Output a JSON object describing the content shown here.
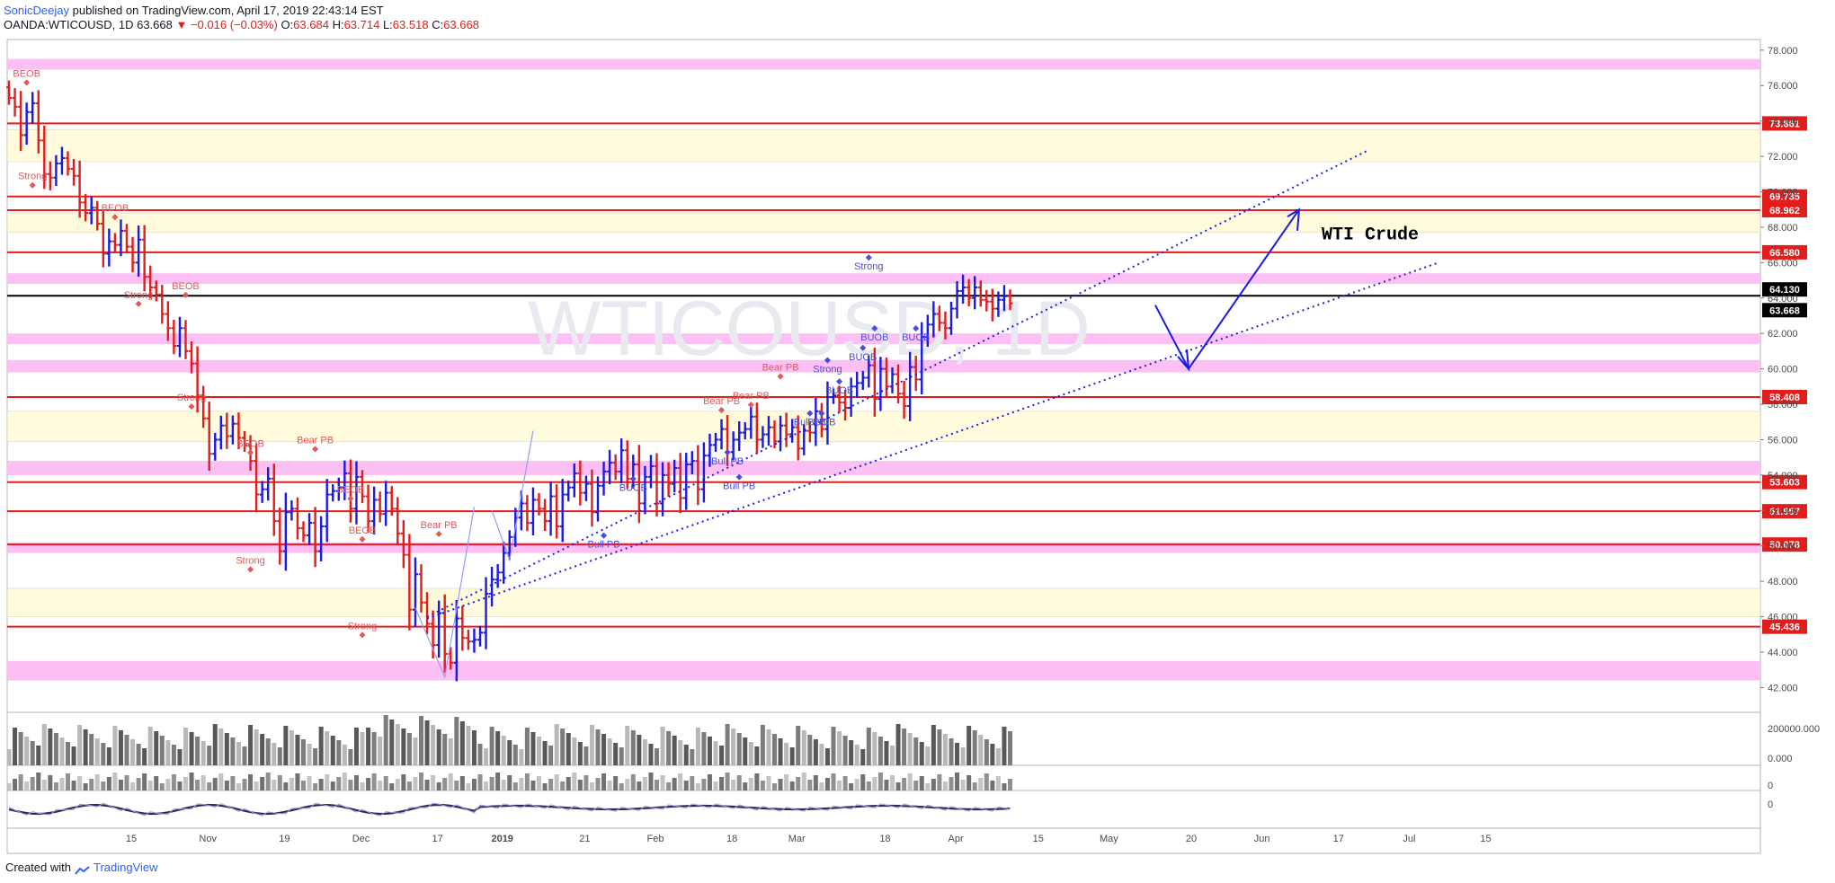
{
  "header": {
    "author": "SonicDeejay",
    "published": "published on TradingView.com, April 17, 2019 22:43:14 EST",
    "symbol": "OANDA:WTICOUSD, 1D",
    "last": "63.668",
    "change": "▼ −0.016 (−0.03%)",
    "o_label": "O:",
    "o_value": "63.684",
    "h_label": "H:",
    "h_value": "63.714",
    "l_label": "L:",
    "l_value": "63.518",
    "c_label": "C:",
    "c_value": "63.668"
  },
  "footer": {
    "text": "Created with",
    "brand": "TradingView"
  },
  "colors": {
    "up": "#1a1ae6",
    "down": "#e31c1c",
    "level": "#e31c1c",
    "zone_pink": "#fdb9f3",
    "zone_yellow": "#fffbd9",
    "accent": "#2962ff"
  },
  "chart_data": {
    "type": "candlestick",
    "y_ticks": [
      "78.000",
      "76.000",
      "74.000",
      "72.000",
      "70.000",
      "68.000",
      "66.000",
      "64.000",
      "62.000",
      "60.000",
      "58.000",
      "56.000",
      "54.000",
      "52.000",
      "50.000",
      "48.000",
      "46.000",
      "44.000",
      "42.000"
    ],
    "ylim": [
      40.6,
      78.6
    ],
    "x_labels": [
      "15",
      "Nov",
      "19",
      "Dec",
      "17",
      "2019",
      "21",
      "Feb",
      "18",
      "Mar",
      "18",
      "Apr",
      "15",
      "May",
      "20",
      "Jun",
      "17",
      "Jul",
      "15"
    ],
    "x_label_index": [
      11,
      24,
      37,
      50,
      63,
      74,
      88,
      100,
      113,
      124,
      139,
      151,
      165,
      177,
      191,
      203,
      216,
      228,
      241
    ],
    "price_levels": [
      {
        "label": "73.861",
        "value": 73.861
      },
      {
        "label": "69.735",
        "value": 69.735
      },
      {
        "label": "68.962",
        "value": 68.962
      },
      {
        "label": "66.580",
        "value": 66.58
      },
      {
        "label": "58.408",
        "value": 58.408
      },
      {
        "label": "53.603",
        "value": 53.603
      },
      {
        "label": "51.957",
        "value": 51.957
      },
      {
        "label": "50.078",
        "value": 50.078
      },
      {
        "label": "45.436",
        "value": 45.436
      }
    ],
    "current": [
      {
        "label": "64.130",
        "value": 64.13,
        "bg": "#000000"
      },
      {
        "label": "63.668",
        "value": 63.668,
        "bg": "#000000"
      }
    ],
    "zones": [
      {
        "type": "pink",
        "from": 76.9,
        "to": 77.5
      },
      {
        "type": "yellow",
        "from": 71.7,
        "to": 73.5
      },
      {
        "type": "yellow",
        "from": 67.7,
        "to": 68.8
      },
      {
        "type": "pink",
        "from": 64.8,
        "to": 65.4
      },
      {
        "type": "pink",
        "from": 61.4,
        "to": 62.0
      },
      {
        "type": "pink",
        "from": 59.8,
        "to": 60.5
      },
      {
        "type": "yellow",
        "from": 55.9,
        "to": 57.6
      },
      {
        "type": "pink",
        "from": 54.0,
        "to": 54.8
      },
      {
        "type": "pink",
        "from": 49.6,
        "to": 50.2
      },
      {
        "type": "yellow",
        "from": 46.0,
        "to": 47.6
      },
      {
        "type": "pink",
        "from": 42.4,
        "to": 43.5
      }
    ],
    "closes": [
      75.3,
      74.8,
      73.2,
      74.5,
      75.0,
      72.9,
      71.0,
      70.8,
      71.6,
      71.9,
      71.3,
      70.9,
      69.4,
      68.8,
      69.1,
      68.2,
      66.5,
      67.2,
      67.0,
      67.8,
      66.9,
      66.0,
      67.3,
      65.2,
      64.6,
      64.2,
      63.1,
      62.3,
      61.3,
      62.3,
      61.0,
      60.3,
      58.5,
      57.2,
      55.2,
      56.0,
      56.8,
      56.2,
      56.9,
      56.1,
      55.7,
      54.8,
      52.9,
      53.2,
      53.8,
      51.4,
      49.7,
      51.9,
      52.1,
      51.0,
      50.6,
      51.3,
      49.7,
      51.1,
      52.9,
      53.1,
      53.3,
      54.1,
      52.1,
      53.9,
      52.8,
      51.4,
      52.6,
      51.8,
      53.0,
      52.1,
      50.7,
      49.5,
      46.4,
      48.4,
      46.8,
      45.6,
      44.4,
      46.2,
      43.9,
      43.4,
      45.9,
      44.8,
      44.6,
      44.7,
      45.1,
      47.3,
      48.1,
      48.5,
      49.6,
      50.5,
      51.6,
      52.4,
      51.3,
      52.6,
      52.1,
      51.4,
      52.8,
      51.1,
      52.9,
      53.3,
      54.1,
      53.0,
      53.5,
      51.9,
      53.4,
      54.2,
      54.7,
      54.2,
      55.4,
      53.8,
      54.6,
      52.4,
      53.9,
      54.5,
      52.4,
      54.0,
      53.5,
      54.4,
      52.7,
      54.6,
      54.8,
      53.2,
      55.1,
      55.7,
      56.0,
      56.6,
      55.3,
      56.0,
      56.4,
      56.6,
      57.3,
      56.0,
      56.3,
      56.7,
      55.9,
      56.8,
      56.3,
      56.7,
      55.5,
      56.5,
      56.4,
      57.6,
      56.6,
      58.4,
      58.5,
      58.1,
      57.8,
      59.0,
      59.2,
      59.5,
      60.2,
      58.3,
      60.0,
      59.0,
      59.7,
      58.6,
      57.9,
      60.1,
      59.4,
      61.8,
      62.5,
      63.1,
      62.6,
      62.3,
      63.4,
      64.4,
      64.6,
      64.0,
      64.6,
      63.9,
      63.8,
      63.4,
      63.9,
      64.1,
      63.7
    ]
  },
  "annotations": {
    "watermark": "WTICOUSD, 1D",
    "title_label": "WTI Crude",
    "labels": [
      {
        "t": "BEOB",
        "i": 3,
        "v": 76.5,
        "c": "red"
      },
      {
        "t": "Strong",
        "i": 4,
        "v": 70.7,
        "c": "red"
      },
      {
        "t": "BEOB",
        "i": 18,
        "v": 68.9,
        "c": "red"
      },
      {
        "t": "Strong",
        "i": 22,
        "v": 64.0,
        "c": "red"
      },
      {
        "t": "BEOB",
        "i": 30,
        "v": 64.5,
        "c": "red"
      },
      {
        "t": "Strong",
        "i": 31,
        "v": 58.2,
        "c": "red"
      },
      {
        "t": "BEOB",
        "i": 41,
        "v": 55.6,
        "c": "red"
      },
      {
        "t": "Bear PB",
        "i": 52,
        "v": 55.8,
        "c": "red"
      },
      {
        "t": "BEOB",
        "i": 58,
        "v": 53.0,
        "c": "red"
      },
      {
        "t": "Strong",
        "i": 41,
        "v": 49.0,
        "c": "red"
      },
      {
        "t": "BEOB",
        "i": 60,
        "v": 50.7,
        "c": "red"
      },
      {
        "t": "Strong",
        "i": 60,
        "v": 45.3,
        "c": "red"
      },
      {
        "t": "Bear PB",
        "i": 73,
        "v": 51.0,
        "c": "red"
      },
      {
        "t": "BUOB",
        "i": 106,
        "v": 53.1,
        "c": "blue"
      },
      {
        "t": "Bull PB",
        "i": 101,
        "v": 49.9,
        "c": "blue"
      },
      {
        "t": "Bear PB",
        "i": 121,
        "v": 58.0,
        "c": "red"
      },
      {
        "t": "Bear PB",
        "i": 126,
        "v": 58.3,
        "c": "red"
      },
      {
        "t": "Bear PB",
        "i": 131,
        "v": 59.9,
        "c": "red"
      },
      {
        "t": "Bull PB",
        "i": 122,
        "v": 54.6,
        "c": "blue"
      },
      {
        "t": "Bull PB",
        "i": 124,
        "v": 53.2,
        "c": "blue"
      },
      {
        "t": "Bull PB",
        "i": 136,
        "v": 56.8,
        "c": "blue"
      },
      {
        "t": "BUOB",
        "i": 138,
        "v": 56.8,
        "c": "blue"
      },
      {
        "t": "Strong",
        "i": 139,
        "v": 59.8,
        "c": "blue"
      },
      {
        "t": "BUOB",
        "i": 141,
        "v": 58.6,
        "c": "blue"
      },
      {
        "t": "Strong",
        "i": 146,
        "v": 65.6,
        "c": "blue"
      },
      {
        "t": "BUOB",
        "i": 147,
        "v": 61.6,
        "c": "blue"
      },
      {
        "t": "BUOB",
        "i": 145,
        "v": 60.5,
        "c": "blue"
      },
      {
        "t": "BUOB",
        "i": 154,
        "v": 61.6,
        "c": "blue"
      }
    ]
  }
}
